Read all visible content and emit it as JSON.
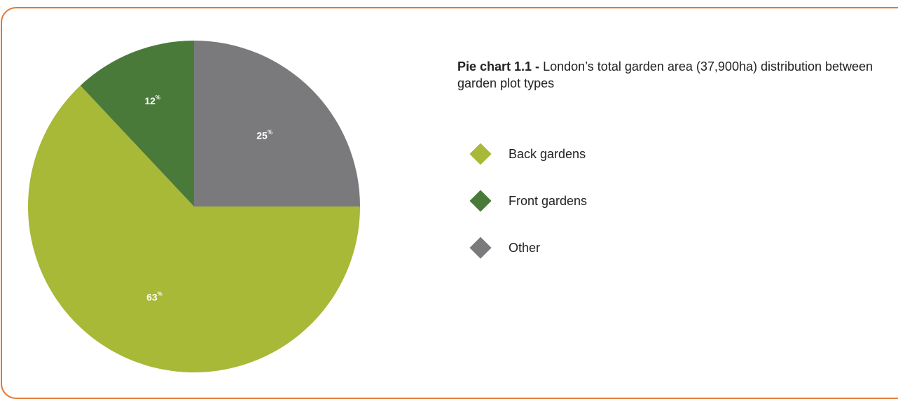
{
  "caption": {
    "title": "Pie chart 1.1 -",
    "text": " London’s total garden area (37,900ha) distribution between garden plot types"
  },
  "chart_data": {
    "type": "pie",
    "title": "Pie chart 1.1 - London’s total garden area (37,900ha) distribution between garden plot types",
    "start_angle_deg": 0,
    "direction": "clockwise",
    "slices": [
      {
        "name": "Other",
        "value": 25,
        "label": "25",
        "unit": "%",
        "color": "#7a7a7d"
      },
      {
        "name": "Back gardens",
        "value": 63,
        "label": "63",
        "unit": "%",
        "color": "#a8b837"
      },
      {
        "name": "Front gardens",
        "value": 12,
        "label": "12",
        "unit": "%",
        "color": "#4a7a3a"
      }
    ],
    "legend_placement": "right",
    "legend": [
      {
        "label": "Back gardens",
        "color": "#a8b837"
      },
      {
        "label": "Front gardens",
        "color": "#4a7a3a"
      },
      {
        "label": "Other",
        "color": "#7a7a7d"
      }
    ]
  },
  "colors": {
    "frame_border": "#e07a2e"
  }
}
